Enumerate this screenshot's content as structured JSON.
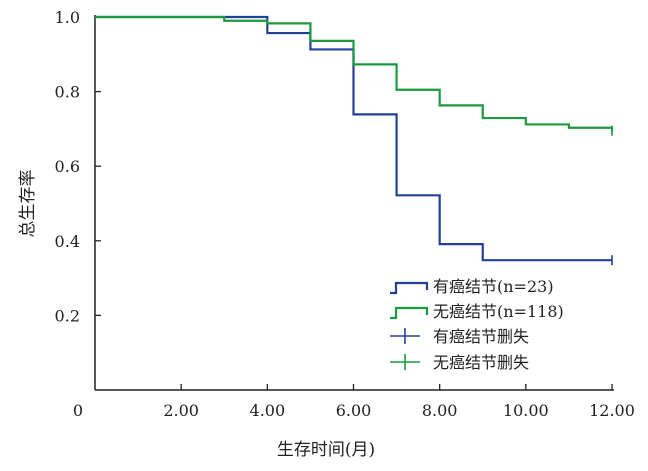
{
  "chart_data": {
    "type": "line",
    "xlabel": "生存时间(月)",
    "ylabel": "总生存率",
    "xlim": [
      0,
      12
    ],
    "ylim": [
      0,
      1.0
    ],
    "x_ticks": [
      "0",
      "2.00",
      "4.00",
      "6.00",
      "8.00",
      "10.00",
      "12.00"
    ],
    "y_ticks": [
      "0.2",
      "0.4",
      "0.6",
      "0.8",
      "1.0"
    ],
    "grid": false,
    "legend_position": "bottom-right",
    "series": [
      {
        "name": "有癌结节(n=23)",
        "color": "#22409a",
        "steps": [
          [
            0,
            1.0
          ],
          [
            4,
            0.957
          ],
          [
            5,
            0.913
          ],
          [
            6,
            0.739
          ],
          [
            7,
            0.522
          ],
          [
            8,
            0.391
          ],
          [
            9,
            0.348
          ],
          [
            12,
            0.348
          ]
        ],
        "censor_marks": [
          [
            12,
            0.348
          ]
        ]
      },
      {
        "name": "无癌结节(n=118)",
        "color": "#1a9a3c",
        "steps": [
          [
            0,
            1.0
          ],
          [
            3,
            0.99
          ],
          [
            4,
            0.983
          ],
          [
            5,
            0.936
          ],
          [
            6,
            0.873
          ],
          [
            7,
            0.805
          ],
          [
            8,
            0.763
          ],
          [
            9,
            0.729
          ],
          [
            10,
            0.712
          ],
          [
            11,
            0.703
          ],
          [
            12,
            0.695
          ]
        ],
        "censor_marks": [
          [
            12,
            0.695
          ]
        ]
      }
    ],
    "legend": [
      {
        "label": "有癌结节(n=23)",
        "style": "step",
        "color": "#22409a"
      },
      {
        "label": "无癌结节(n=118)",
        "style": "step",
        "color": "#1a9a3c"
      },
      {
        "label": "有癌结节删失",
        "style": "censor",
        "color": "#22409a"
      },
      {
        "label": "无癌结节删失",
        "style": "censor",
        "color": "#1a9a3c"
      }
    ]
  }
}
